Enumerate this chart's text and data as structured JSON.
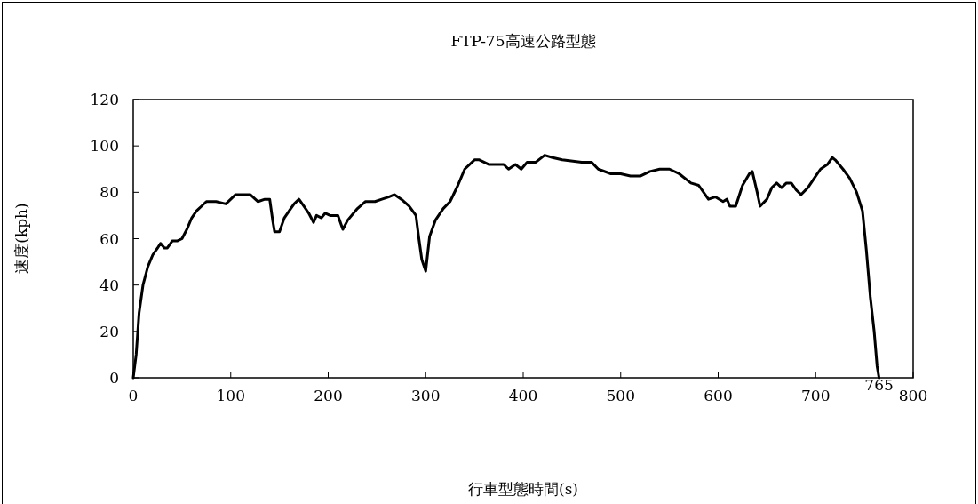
{
  "chart_data": {
    "type": "line",
    "title": "FTP-75高速公路型態",
    "xlabel": "行車型態時間(s)",
    "ylabel": "速度(kph)",
    "x": [
      0,
      3,
      6,
      10,
      15,
      20,
      25,
      28,
      32,
      35,
      40,
      45,
      50,
      55,
      60,
      65,
      70,
      75,
      85,
      95,
      105,
      115,
      120,
      128,
      135,
      140,
      143,
      145,
      150,
      155,
      160,
      165,
      170,
      175,
      180,
      185,
      188,
      193,
      197,
      202,
      210,
      215,
      220,
      230,
      238,
      248,
      255,
      262,
      268,
      275,
      283,
      290,
      293,
      296,
      300,
      304,
      310,
      318,
      325,
      333,
      340,
      350,
      355,
      365,
      380,
      385,
      392,
      398,
      404,
      413,
      422,
      430,
      440,
      460,
      470,
      477,
      490,
      500,
      510,
      520,
      530,
      540,
      550,
      560,
      572,
      580,
      590,
      597,
      605,
      609,
      612,
      618,
      625,
      632,
      635,
      640,
      643,
      650,
      655,
      660,
      665,
      670,
      675,
      680,
      685,
      692,
      700,
      705,
      712,
      717,
      720,
      728,
      735,
      742,
      748,
      752,
      756,
      760,
      763,
      765
    ],
    "series": [
      {
        "color": "#000000",
        "values": [
          0,
          10,
          28,
          40,
          48,
          53,
          56,
          58,
          56,
          56,
          59,
          59,
          60,
          64,
          69,
          72,
          74,
          76,
          76,
          75,
          79,
          79,
          79,
          76,
          77,
          77,
          68,
          63,
          63,
          69,
          72,
          75,
          77,
          74,
          71,
          67,
          70,
          69,
          71,
          70,
          70,
          64,
          68,
          73,
          76,
          76,
          77,
          78,
          79,
          77,
          74,
          70,
          60,
          51,
          46,
          61,
          68,
          73,
          76,
          83,
          90,
          94,
          94,
          92,
          92,
          90,
          92,
          90,
          93,
          93,
          96,
          95,
          94,
          93,
          93,
          90,
          88,
          88,
          87,
          87,
          89,
          90,
          90,
          88,
          84,
          83,
          77,
          78,
          76,
          77,
          74,
          74,
          83,
          88,
          89,
          80,
          74,
          77,
          82,
          84,
          82,
          84,
          84,
          81,
          79,
          82,
          87,
          90,
          92,
          95,
          94,
          90,
          86,
          80,
          72,
          55,
          35,
          20,
          5,
          0
        ]
      }
    ],
    "xlim": [
      0,
      800
    ],
    "ylim": [
      0,
      120
    ],
    "xticks": [
      0,
      100,
      200,
      300,
      400,
      500,
      600,
      700,
      800
    ],
    "yticks": [
      0,
      20,
      40,
      60,
      80,
      100,
      120
    ],
    "grid": false,
    "marker": "none",
    "line_style": "solid",
    "annotations": [
      {
        "text": "765",
        "x": 765,
        "y": 0
      }
    ]
  }
}
